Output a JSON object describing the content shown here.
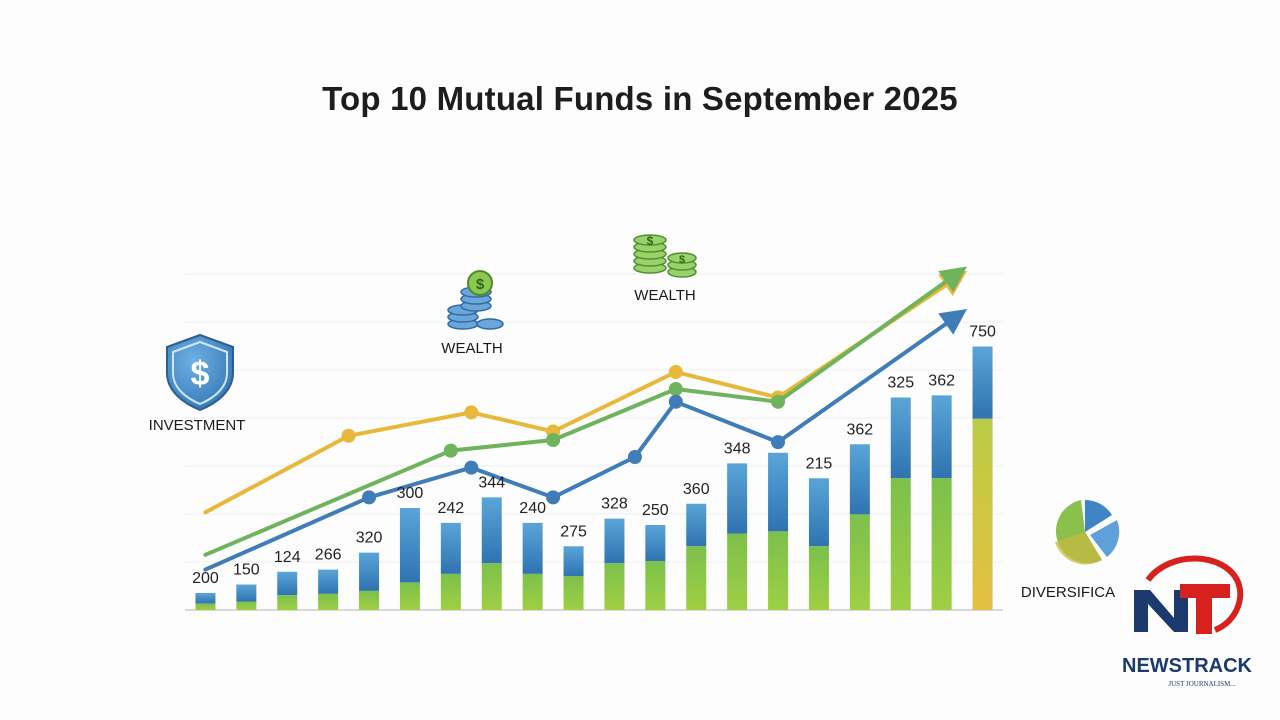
{
  "title": "Top 10 Mutual Funds in September 2025",
  "icons": {
    "investment": {
      "name": "shield-dollar-icon",
      "label": "INVESTMENT"
    },
    "wealth_1": {
      "name": "coin-stack-icon",
      "label": "WEALTH"
    },
    "wealth_2": {
      "name": "coin-stack-icon",
      "label": "WEALTH"
    },
    "diversification": {
      "name": "pie-chart-icon",
      "label": "DIVERSIFICA"
    }
  },
  "logo": {
    "text": "NEWSTRACK",
    "tagline": "JUST JOURNALISM..."
  },
  "colors": {
    "bar_blue": "#3d87c3",
    "bar_green": "#7cc04b",
    "line_yellow": "#e8b83a",
    "line_green": "#6fb35c",
    "line_blue": "#3f7cb8"
  },
  "chart_data": {
    "type": "bar",
    "title": "Top 10 Mutual Funds in September 2025",
    "xlabel": "",
    "ylabel": "",
    "grid": true,
    "ylim": [
      0,
      800
    ],
    "data_labels": [
      "200",
      "150",
      "124",
      "266",
      "320",
      "300",
      "242",
      "344",
      "240",
      "275",
      "328",
      "250",
      "360",
      "348",
      "",
      "215",
      "362",
      "325",
      "362",
      "750"
    ],
    "values": [
      40,
      60,
      90,
      95,
      135,
      240,
      205,
      265,
      205,
      150,
      215,
      200,
      250,
      345,
      370,
      310,
      390,
      500,
      505,
      620
    ],
    "green_portion": [
      15,
      20,
      35,
      38,
      45,
      65,
      85,
      110,
      85,
      80,
      110,
      115,
      150,
      180,
      185,
      150,
      225,
      310,
      310,
      450
    ],
    "lines": [
      {
        "color": "yellow",
        "points": [
          [
            1,
            230
          ],
          [
            4.5,
            410
          ],
          [
            7.5,
            465
          ],
          [
            9.5,
            420
          ],
          [
            12.5,
            560
          ],
          [
            15,
            500
          ],
          [
            19.5,
            790
          ]
        ]
      },
      {
        "color": "green",
        "points": [
          [
            1,
            130
          ],
          [
            7,
            375
          ],
          [
            9.5,
            400
          ],
          [
            12.5,
            520
          ],
          [
            15,
            490
          ],
          [
            19.5,
            800
          ]
        ]
      },
      {
        "color": "blue",
        "points": [
          [
            1,
            95
          ],
          [
            5,
            265
          ],
          [
            7.5,
            335
          ],
          [
            9.5,
            265
          ],
          [
            11.5,
            360
          ],
          [
            12.5,
            490
          ],
          [
            15,
            395
          ],
          [
            19.5,
            700
          ]
        ]
      }
    ]
  }
}
